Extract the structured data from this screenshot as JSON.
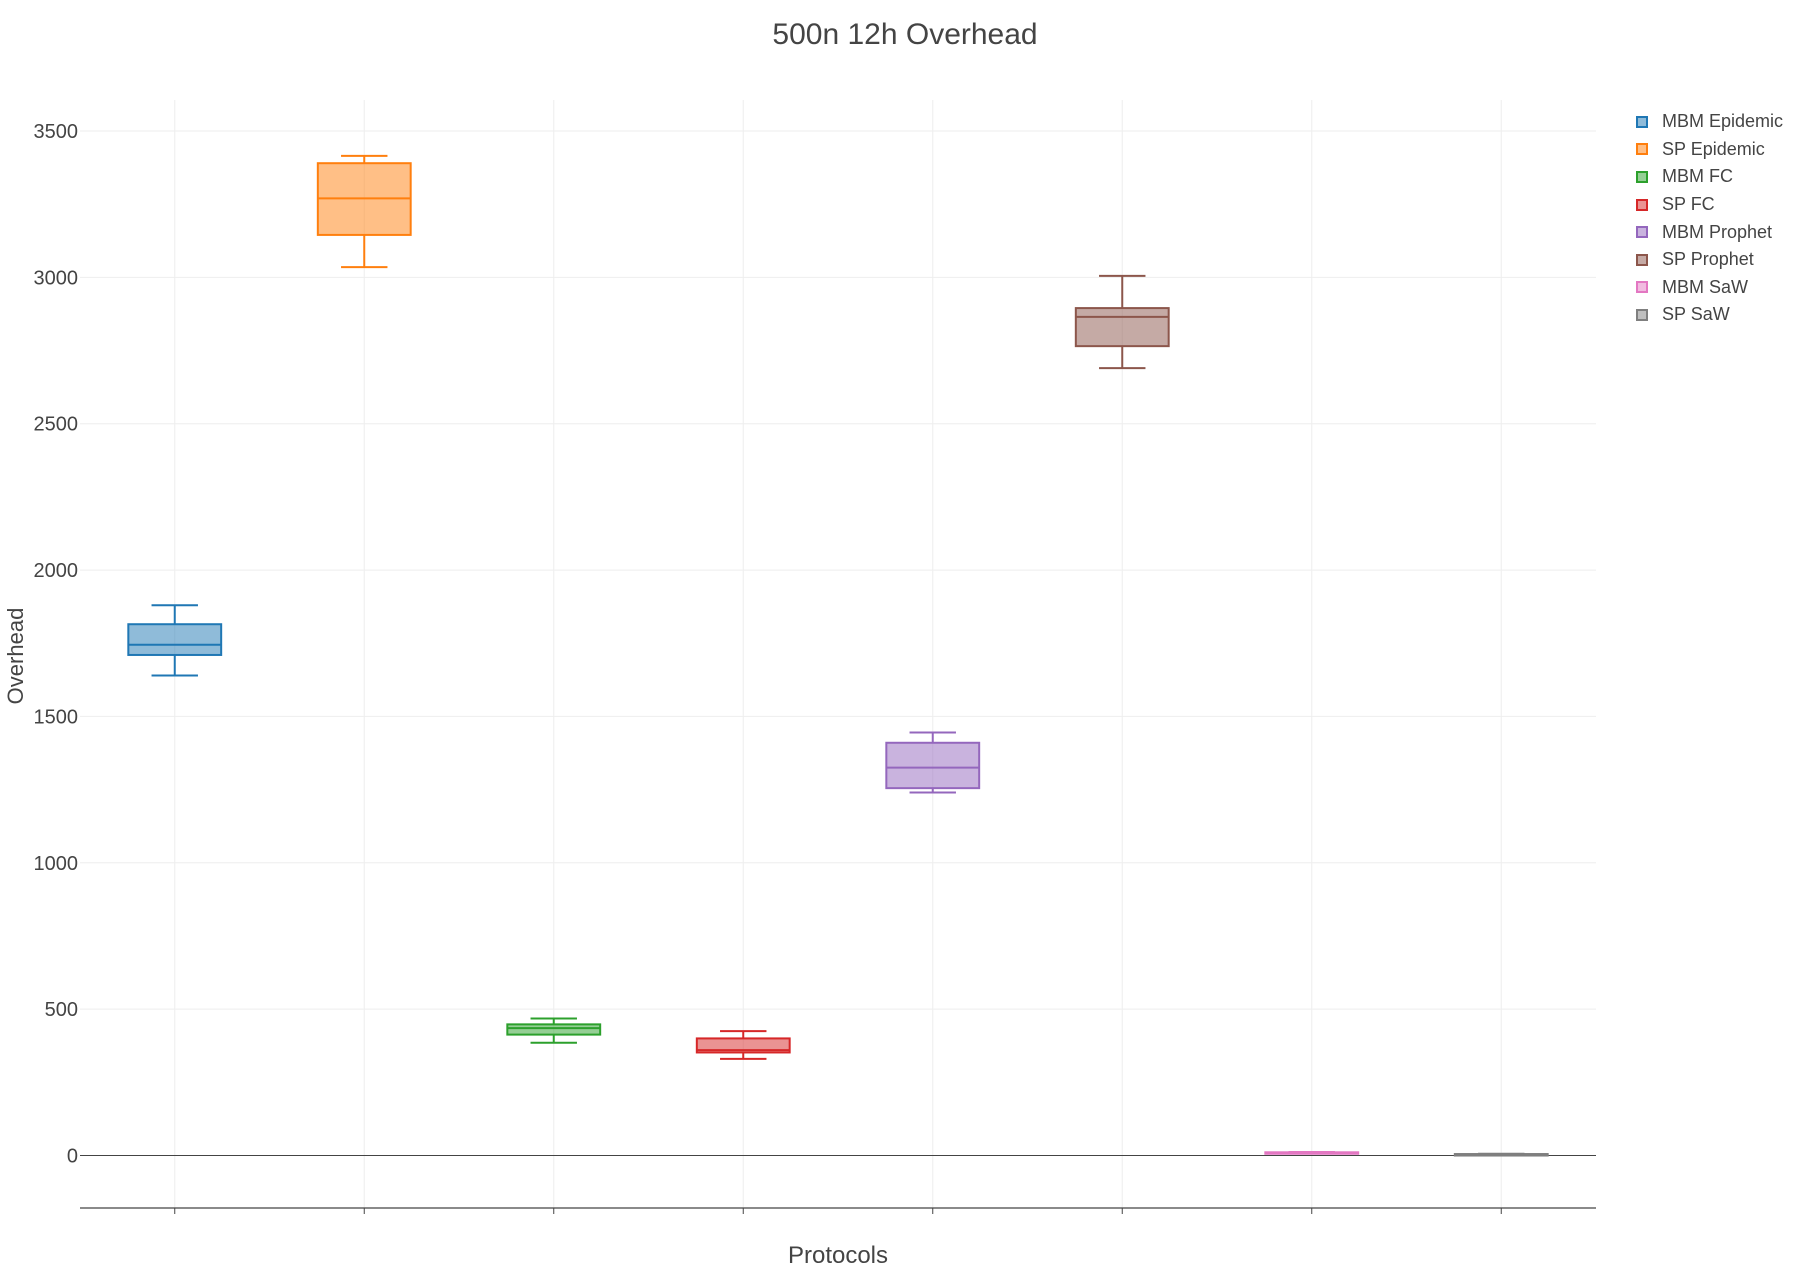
{
  "chart_data": {
    "type": "box",
    "title": "500n 12h Overhead",
    "xlabel": "Protocols",
    "ylabel": "Overhead",
    "ylim": [
      -180,
      3600
    ],
    "yticks": [
      0,
      500,
      1000,
      1500,
      2000,
      2500,
      3000,
      3500
    ],
    "grid": true,
    "legend_position": "top-right",
    "series": [
      {
        "name": "MBM Epidemic",
        "color": "#1f77b4",
        "min": 1640,
        "q1": 1710,
        "median": 1745,
        "q3": 1815,
        "max": 1880
      },
      {
        "name": "SP Epidemic",
        "color": "#ff7f0e",
        "min": 3035,
        "q1": 3145,
        "median": 3270,
        "q3": 3390,
        "max": 3415
      },
      {
        "name": "MBM FC",
        "color": "#2ca02c",
        "min": 385,
        "q1": 413,
        "median": 435,
        "q3": 448,
        "max": 468
      },
      {
        "name": "SP FC",
        "color": "#d62728",
        "min": 330,
        "q1": 352,
        "median": 360,
        "q3": 400,
        "max": 425
      },
      {
        "name": "MBM Prophet",
        "color": "#9467bd",
        "min": 1240,
        "q1": 1255,
        "median": 1325,
        "q3": 1410,
        "max": 1445
      },
      {
        "name": "SP Prophet",
        "color": "#8c564b",
        "min": 2690,
        "q1": 2765,
        "median": 2865,
        "q3": 2895,
        "max": 3005
      },
      {
        "name": "MBM SaW",
        "color": "#e377c2",
        "min": 8,
        "q1": 9,
        "median": 10,
        "q3": 11,
        "max": 12
      },
      {
        "name": "SP SaW",
        "color": "#7f7f7f",
        "min": 2,
        "q1": 3,
        "median": 4,
        "q3": 5,
        "max": 6
      }
    ]
  }
}
